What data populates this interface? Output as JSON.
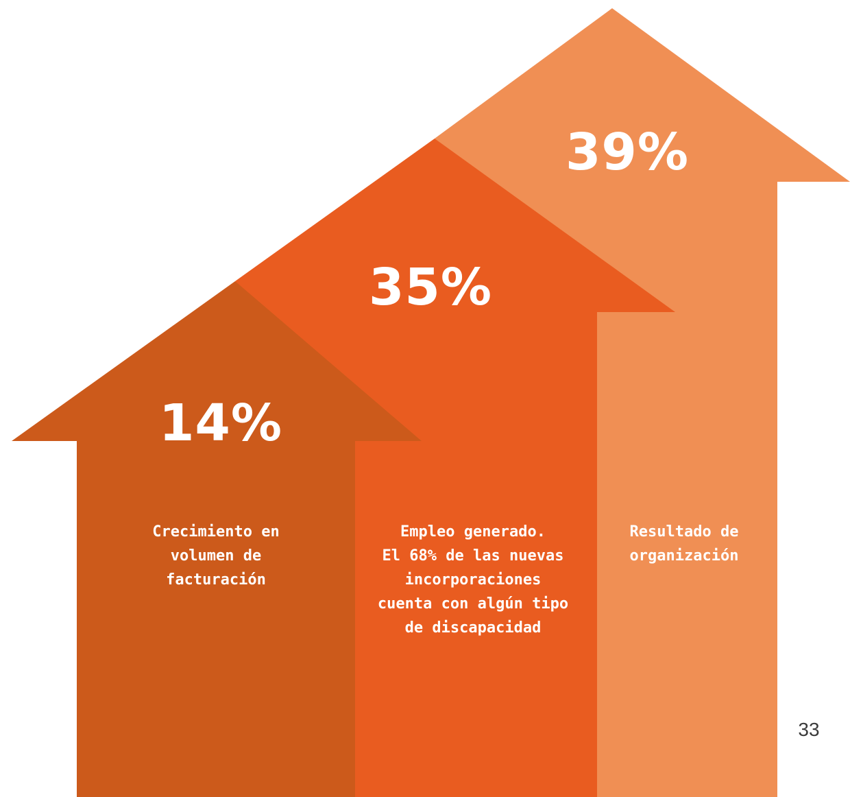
{
  "colors": {
    "arrow_dark": "#CC5A1B",
    "arrow_medium": "#E95C20",
    "arrow_light": "#F08F54",
    "text_on_arrow": "#FFFFFF",
    "page_number": "#3B3B3B"
  },
  "arrows": [
    {
      "value": "14%",
      "description": "Crecimiento en\nvolumen de\nfacturación"
    },
    {
      "value": "35%",
      "description": "Empleo generado.\nEl 68% de las nuevas\nincorporaciones\ncuenta con algún tipo\nde discapacidad"
    },
    {
      "value": "39%",
      "description": "Resultado de\norganización"
    }
  ],
  "page_number": "33"
}
